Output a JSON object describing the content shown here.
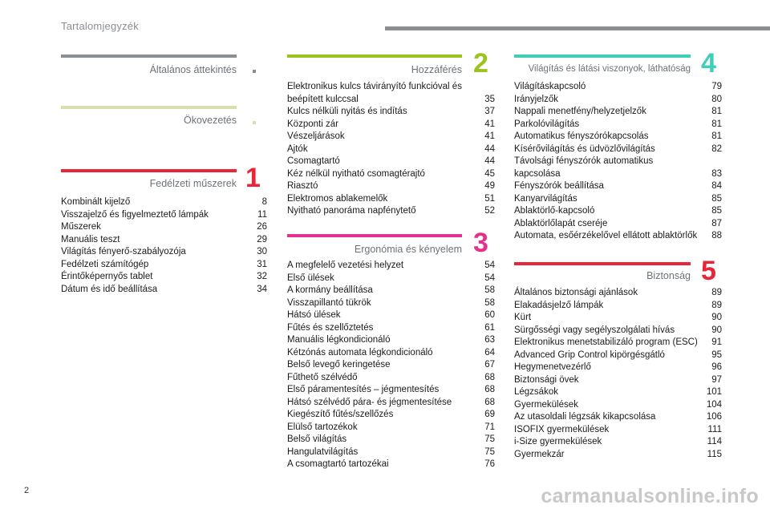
{
  "header": {
    "title": "Tartalomjegyzék"
  },
  "page_number": "2",
  "watermark": "carmanualsonline.info",
  "sections": {
    "general": {
      "title": "Általános áttekintés",
      "color": "#8a8f96"
    },
    "eco": {
      "title": "Ökovezetés",
      "color": "#d9ddb0"
    },
    "s1": {
      "title": "Fedélzeti műszerek",
      "num": "1",
      "color": "#e8263a",
      "items": [
        {
          "t": "Kombinált kijelző",
          "p": "8"
        },
        {
          "t": "Visszajelző és figyelmeztető lámpák",
          "p": "11"
        },
        {
          "t": "Műszerek",
          "p": "26"
        },
        {
          "t": "Manuális teszt",
          "p": "29"
        },
        {
          "t": "Világítás fényerő-szabályozója",
          "p": "30"
        },
        {
          "t": "Fedélzeti számítógép",
          "p": "31"
        },
        {
          "t": "Érintőképernyős tablet",
          "p": "32"
        },
        {
          "t": "Dátum és idő beállítása",
          "p": "34"
        }
      ]
    },
    "s2": {
      "title": "Hozzáférés",
      "num": "2",
      "color": "#9ac31c",
      "items": [
        {
          "t": "Elektronikus kulcs távirányító funkcióval és beépített kulccsal",
          "p": "35"
        },
        {
          "t": "Kulcs nélküli nyitás és indítás",
          "p": "37"
        },
        {
          "t": "Központi zár",
          "p": "41"
        },
        {
          "t": "Vészeljárások",
          "p": "41"
        },
        {
          "t": "Ajtók",
          "p": "44"
        },
        {
          "t": "Csomagtartó",
          "p": "44"
        },
        {
          "t": "Kéz nélkül nyitható csomagtérajtó",
          "p": "45"
        },
        {
          "t": "Riasztó",
          "p": "49"
        },
        {
          "t": "Elektromos ablakemelők",
          "p": "51"
        },
        {
          "t": "Nyitható panoráma napfénytető",
          "p": "52"
        }
      ]
    },
    "s3": {
      "title": "Ergonómia és kényelem",
      "num": "3",
      "color": "#e3318d",
      "items": [
        {
          "t": "A megfelelő vezetési helyzet",
          "p": "54"
        },
        {
          "t": "Első ülések",
          "p": "54"
        },
        {
          "t": "A kormány beállítása",
          "p": "58"
        },
        {
          "t": "Visszapillantó tükrök",
          "p": "58"
        },
        {
          "t": "Hátsó ülések",
          "p": "60"
        },
        {
          "t": "Fűtés és szellőztetés",
          "p": "61"
        },
        {
          "t": "Manuális légkondicionáló",
          "p": "63"
        },
        {
          "t": "Kétzónás automata légkondicionáló",
          "p": "64"
        },
        {
          "t": "Belső levegő keringetése",
          "p": "67"
        },
        {
          "t": "Fűthető szélvédő",
          "p": "68"
        },
        {
          "t": "Első páramentesítés – jégmentesítés",
          "p": "68"
        },
        {
          "t": "Hátsó szélvédő pára- és jégmentesítése",
          "p": "68"
        },
        {
          "t": "Kiegészítő fűtés/szellőzés",
          "p": "69"
        },
        {
          "t": "Elülső tartozékok",
          "p": "71"
        },
        {
          "t": "Belső világítás",
          "p": "75"
        },
        {
          "t": "Hangulatvilágítás",
          "p": "75"
        },
        {
          "t": "A csomagtartó tartozékai",
          "p": "76"
        }
      ]
    },
    "s4": {
      "title": "Világítás és látási viszonyok, láthatóság",
      "num": "4",
      "color": "#3ecfb8",
      "items": [
        {
          "t": "Világításkapcsoló",
          "p": "79"
        },
        {
          "t": "Irányjelzők",
          "p": "80"
        },
        {
          "t": "Nappali menetfény/helyzetjelzők",
          "p": "81"
        },
        {
          "t": "Parkolóvilágítás",
          "p": "81"
        },
        {
          "t": "Automatikus fényszórókapcsolás",
          "p": "81"
        },
        {
          "t": "Kísérővilágítás és üdvözlővilágítás",
          "p": "82"
        },
        {
          "t": "Távolsági fényszórók automatikus kapcsolása",
          "p": "83"
        },
        {
          "t": "Fényszórók beállítása",
          "p": "84"
        },
        {
          "t": "Kanyarvilágítás",
          "p": "85"
        },
        {
          "t": "Ablaktörlő-kapcsoló",
          "p": "85"
        },
        {
          "t": "Ablaktörlőlapát cseréje",
          "p": "87"
        },
        {
          "t": "Automata, esőérzékelővel ellátott ablaktörlők",
          "p": "88"
        }
      ]
    },
    "s5": {
      "title": "Biztonság",
      "num": "5",
      "color": "#e8263a",
      "items": [
        {
          "t": "Általános biztonsági ajánlások",
          "p": "89"
        },
        {
          "t": "Elakadásjelző lámpák",
          "p": "89"
        },
        {
          "t": "Kürt",
          "p": "90"
        },
        {
          "t": "Sürgősségi vagy segélyszolgálati hívás",
          "p": "90"
        },
        {
          "t": "Elektronikus menetstabilizáló program (ESC)",
          "p": "91"
        },
        {
          "t": "Advanced Grip Control kipörgésgátló",
          "p": "95"
        },
        {
          "t": "Hegymenetvezérlő",
          "p": "96"
        },
        {
          "t": "Biztonsági övek",
          "p": "97"
        },
        {
          "t": "Légzsákok",
          "p": "101"
        },
        {
          "t": "Gyermekülések",
          "p": "104"
        },
        {
          "t": "Az utasoldali légzsák kikapcsolása",
          "p": "106"
        },
        {
          "t": "ISOFIX gyermekülések",
          "p": "111"
        },
        {
          "t": "i-Size gyermekülések",
          "p": "114"
        },
        {
          "t": "Gyermekzár",
          "p": "115"
        }
      ]
    }
  }
}
